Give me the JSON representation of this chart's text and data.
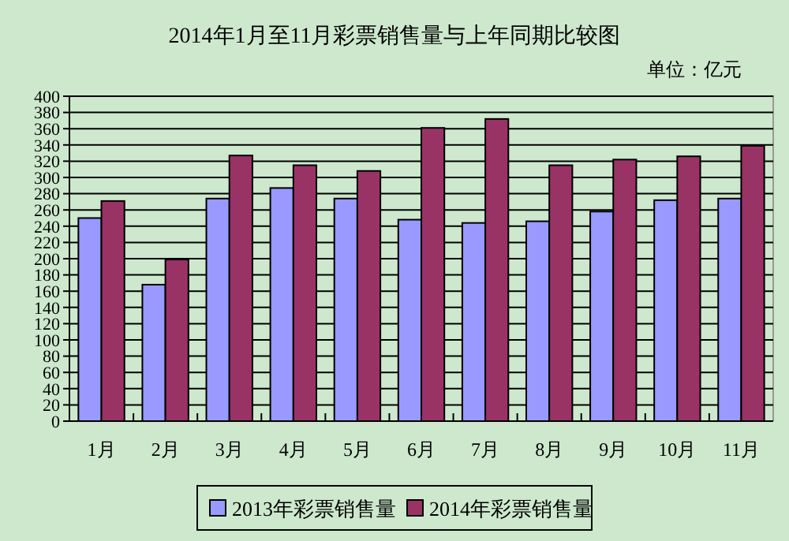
{
  "chart_data": {
    "type": "bar",
    "title": "2014年1月至11月彩票销售量与上年同期比较图",
    "annotations": [
      "单位：亿元"
    ],
    "categories": [
      "1月",
      "2月",
      "3月",
      "4月",
      "5月",
      "6月",
      "7月",
      "8月",
      "9月",
      "10月",
      "11月"
    ],
    "series": [
      {
        "name": "2013年彩票销售量",
        "color": "#9999ff",
        "values": [
          250,
          168,
          274,
          287,
          274,
          248,
          244,
          246,
          258,
          272,
          274
        ]
      },
      {
        "name": "2014年彩票销售量",
        "color": "#993366",
        "values": [
          271,
          199,
          327,
          315,
          308,
          361,
          372,
          315,
          322,
          326,
          339
        ]
      }
    ],
    "ylim": [
      0,
      400
    ],
    "yticks": [
      0,
      20,
      40,
      60,
      80,
      100,
      120,
      140,
      160,
      180,
      200,
      220,
      240,
      260,
      280,
      300,
      320,
      340,
      360,
      380,
      400
    ],
    "grid": "y",
    "legend": "bottom"
  }
}
